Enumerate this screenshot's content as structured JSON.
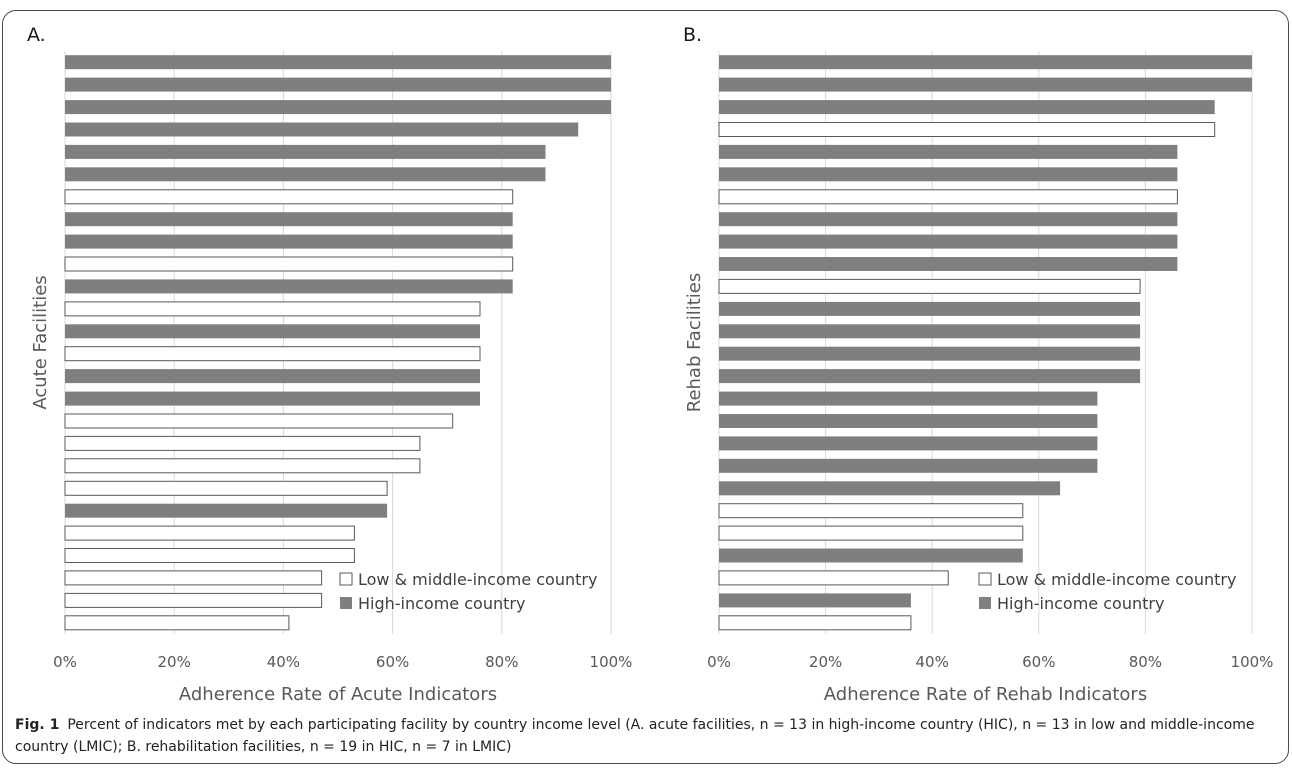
{
  "caption": {
    "fig_label": "Fig. 1",
    "text": "Percent of indicators met by each participating facility by country income level (A. acute facilities, n = 13 in high-income country (HIC), n = 13 in low and middle-income country (LMIC); B. rehabilitation facilities, n = 19 in HIC, n = 7 in LMIC)"
  },
  "colors": {
    "hic": "#7f7f7f",
    "lmic": "#ffffff",
    "outline": "#595959",
    "gridline": "#d9d9d9"
  },
  "chart_data": [
    {
      "panel_label": "A.",
      "type": "bar",
      "orientation": "horizontal",
      "xlabel": "Adherence Rate of Acute Indicators",
      "ylabel": "Acute Facilities",
      "xlim": [
        0,
        100
      ],
      "x_ticks": [
        "0%",
        "20%",
        "40%",
        "60%",
        "80%",
        "100%"
      ],
      "legend": [
        "Low & middle-income country",
        "High-income country"
      ],
      "legend_position": "bottom-right",
      "series": [
        {
          "name": "Low & middle-income country",
          "key": "LMIC"
        },
        {
          "name": "High-income country",
          "key": "HIC"
        }
      ],
      "bars": [
        {
          "value": 100,
          "group": "HIC"
        },
        {
          "value": 100,
          "group": "HIC"
        },
        {
          "value": 100,
          "group": "HIC"
        },
        {
          "value": 94,
          "group": "HIC"
        },
        {
          "value": 88,
          "group": "HIC"
        },
        {
          "value": 88,
          "group": "HIC"
        },
        {
          "value": 82,
          "group": "LMIC"
        },
        {
          "value": 82,
          "group": "HIC"
        },
        {
          "value": 82,
          "group": "HIC"
        },
        {
          "value": 82,
          "group": "LMIC"
        },
        {
          "value": 82,
          "group": "HIC"
        },
        {
          "value": 76,
          "group": "LMIC"
        },
        {
          "value": 76,
          "group": "HIC"
        },
        {
          "value": 76,
          "group": "LMIC"
        },
        {
          "value": 76,
          "group": "HIC"
        },
        {
          "value": 76,
          "group": "HIC"
        },
        {
          "value": 71,
          "group": "LMIC"
        },
        {
          "value": 65,
          "group": "LMIC"
        },
        {
          "value": 65,
          "group": "LMIC"
        },
        {
          "value": 59,
          "group": "LMIC"
        },
        {
          "value": 59,
          "group": "HIC"
        },
        {
          "value": 53,
          "group": "LMIC"
        },
        {
          "value": 53,
          "group": "LMIC"
        },
        {
          "value": 47,
          "group": "LMIC"
        },
        {
          "value": 47,
          "group": "LMIC"
        },
        {
          "value": 41,
          "group": "LMIC"
        }
      ]
    },
    {
      "panel_label": "B.",
      "type": "bar",
      "orientation": "horizontal",
      "xlabel": "Adherence Rate of Rehab Indicators",
      "ylabel": "Rehab Facilities",
      "xlim": [
        0,
        100
      ],
      "x_ticks": [
        "0%",
        "20%",
        "40%",
        "60%",
        "80%",
        "100%"
      ],
      "legend": [
        "Low & middle-income country",
        "High-income country"
      ],
      "legend_position": "bottom-right",
      "series": [
        {
          "name": "Low & middle-income country",
          "key": "LMIC"
        },
        {
          "name": "High-income country",
          "key": "HIC"
        }
      ],
      "bars": [
        {
          "value": 100,
          "group": "HIC"
        },
        {
          "value": 100,
          "group": "HIC"
        },
        {
          "value": 93,
          "group": "HIC"
        },
        {
          "value": 93,
          "group": "LMIC"
        },
        {
          "value": 86,
          "group": "HIC"
        },
        {
          "value": 86,
          "group": "HIC"
        },
        {
          "value": 86,
          "group": "LMIC"
        },
        {
          "value": 86,
          "group": "HIC"
        },
        {
          "value": 86,
          "group": "HIC"
        },
        {
          "value": 86,
          "group": "HIC"
        },
        {
          "value": 79,
          "group": "LMIC"
        },
        {
          "value": 79,
          "group": "HIC"
        },
        {
          "value": 79,
          "group": "HIC"
        },
        {
          "value": 79,
          "group": "HIC"
        },
        {
          "value": 79,
          "group": "HIC"
        },
        {
          "value": 71,
          "group": "HIC"
        },
        {
          "value": 71,
          "group": "HIC"
        },
        {
          "value": 71,
          "group": "HIC"
        },
        {
          "value": 71,
          "group": "HIC"
        },
        {
          "value": 64,
          "group": "HIC"
        },
        {
          "value": 57,
          "group": "LMIC"
        },
        {
          "value": 57,
          "group": "LMIC"
        },
        {
          "value": 57,
          "group": "HIC"
        },
        {
          "value": 43,
          "group": "LMIC"
        },
        {
          "value": 36,
          "group": "HIC"
        },
        {
          "value": 36,
          "group": "LMIC"
        }
      ]
    }
  ]
}
